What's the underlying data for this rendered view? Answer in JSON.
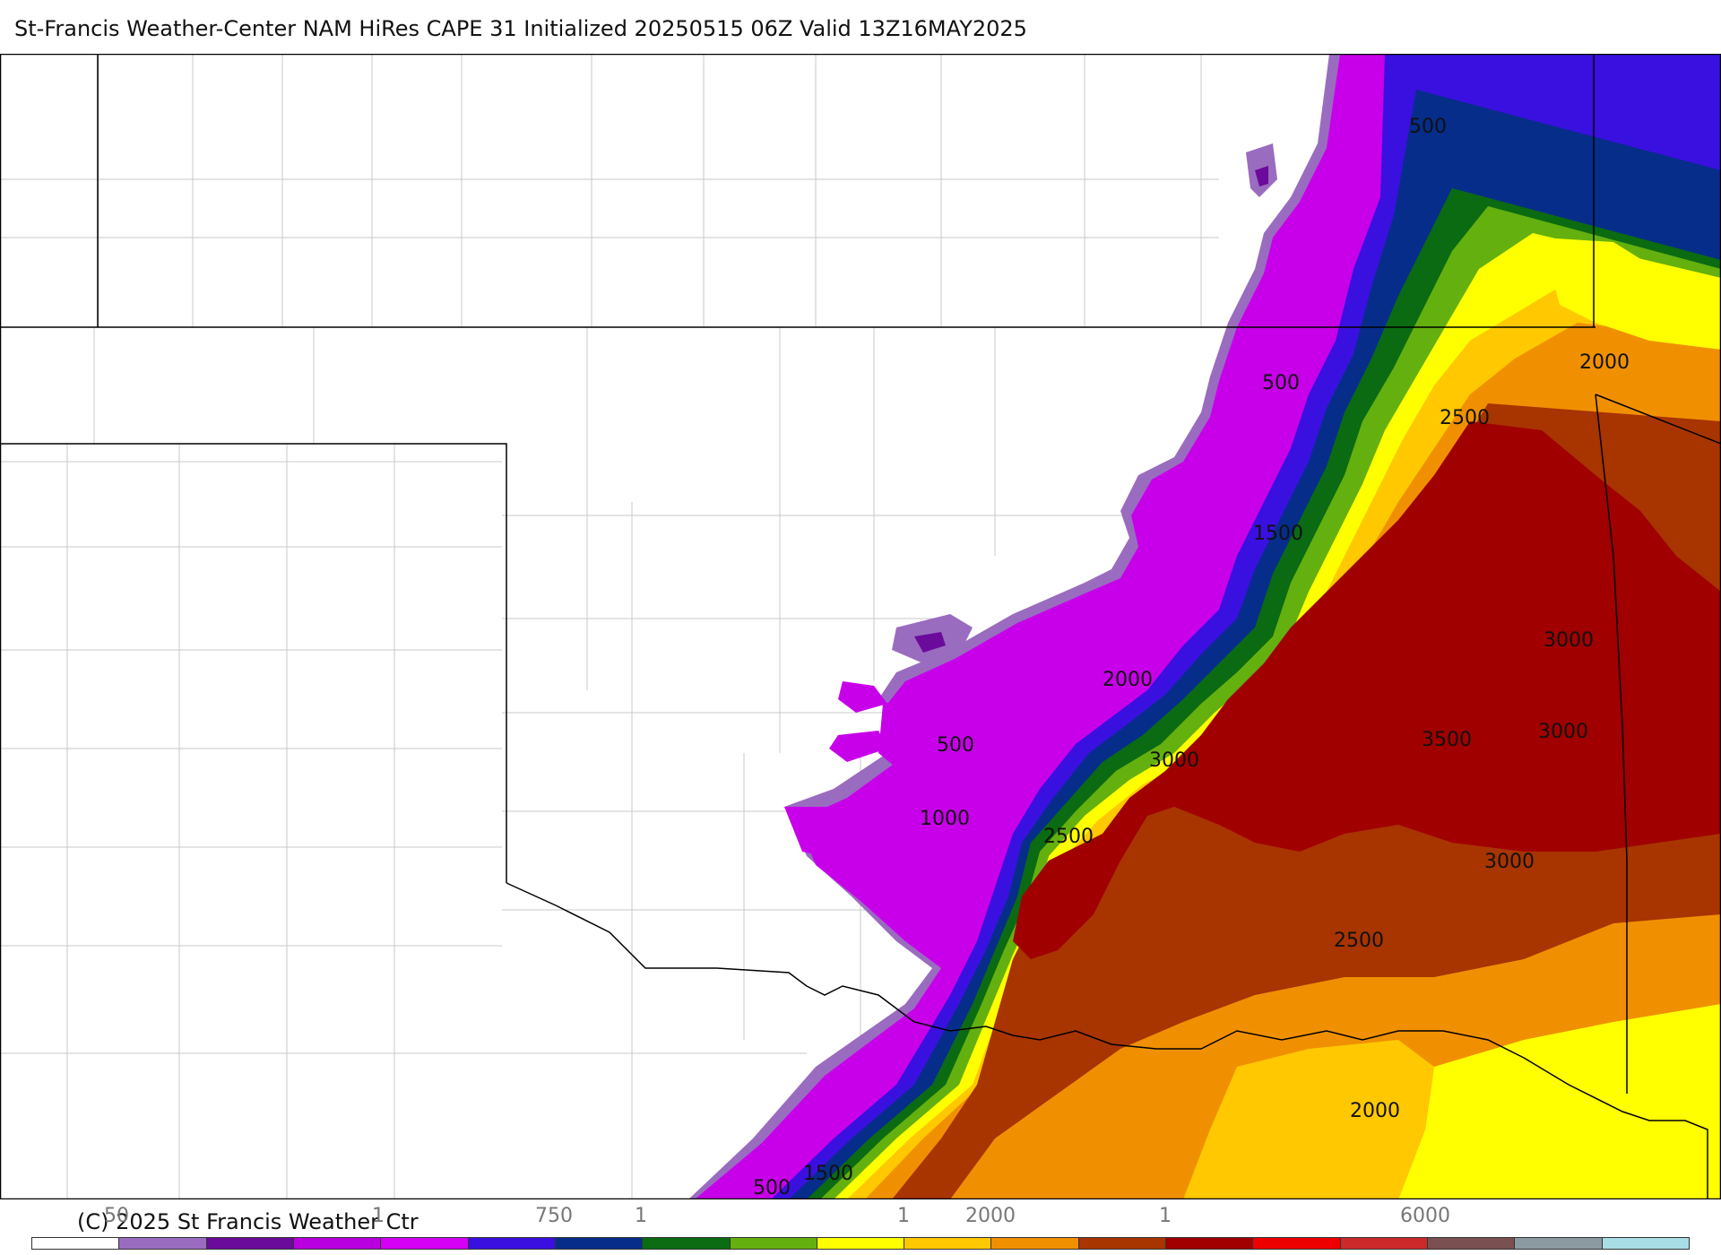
{
  "header": {
    "title": "St-Francis Weather-Center NAM HiRes CAPE  31 Initialized 20250515 06Z Valid 13Z16MAY2025"
  },
  "map": {
    "contour_labels": [
      "500",
      "500",
      "1500",
      "2000",
      "500",
      "1000",
      "2500",
      "3000",
      "2500",
      "3500",
      "3000",
      "3000",
      "3000",
      "2000",
      "2500",
      "2000",
      "1500",
      "500"
    ],
    "fill_levels": [
      {
        "value": "white",
        "color": "#ffffff"
      },
      {
        "value": "violet",
        "color": "#9a6cc0"
      },
      {
        "value": "dark-purple",
        "color": "#6a0b9c"
      },
      {
        "value": "magenta",
        "color": "#b800de"
      },
      {
        "value": "bright-magenta",
        "color": "#d400f4"
      },
      {
        "value": "blue",
        "color": "#3a10e0"
      },
      {
        "value": "navy",
        "color": "#062d8a"
      },
      {
        "value": "dark-green",
        "color": "#0b6b12"
      },
      {
        "value": "green",
        "color": "#64b00e"
      },
      {
        "value": "yellow",
        "color": "#ffff00"
      },
      {
        "value": "gold",
        "color": "#ffc800"
      },
      {
        "value": "orange",
        "color": "#f09000"
      },
      {
        "value": "rust",
        "color": "#a83400"
      },
      {
        "value": "dark-red",
        "color": "#a00000"
      }
    ]
  },
  "footer": {
    "credit": "(C) 2025 St Francis Weather Ctr",
    "tick_labels": [
      "50",
      "1",
      "750",
      "1",
      "1",
      "2000",
      "1",
      "6000"
    ],
    "colorbar": [
      "#ffffff",
      "#9a6cc0",
      "#6a0b9c",
      "#b800de",
      "#d400f4",
      "#3a10e0",
      "#062d8a",
      "#0b6b12",
      "#64b00e",
      "#ffff00",
      "#ffc800",
      "#f09000",
      "#a83400",
      "#a00000",
      "#ee0000",
      "#cc2a2a",
      "#7a5050",
      "#8a9aa0",
      "#a8dde6"
    ]
  }
}
